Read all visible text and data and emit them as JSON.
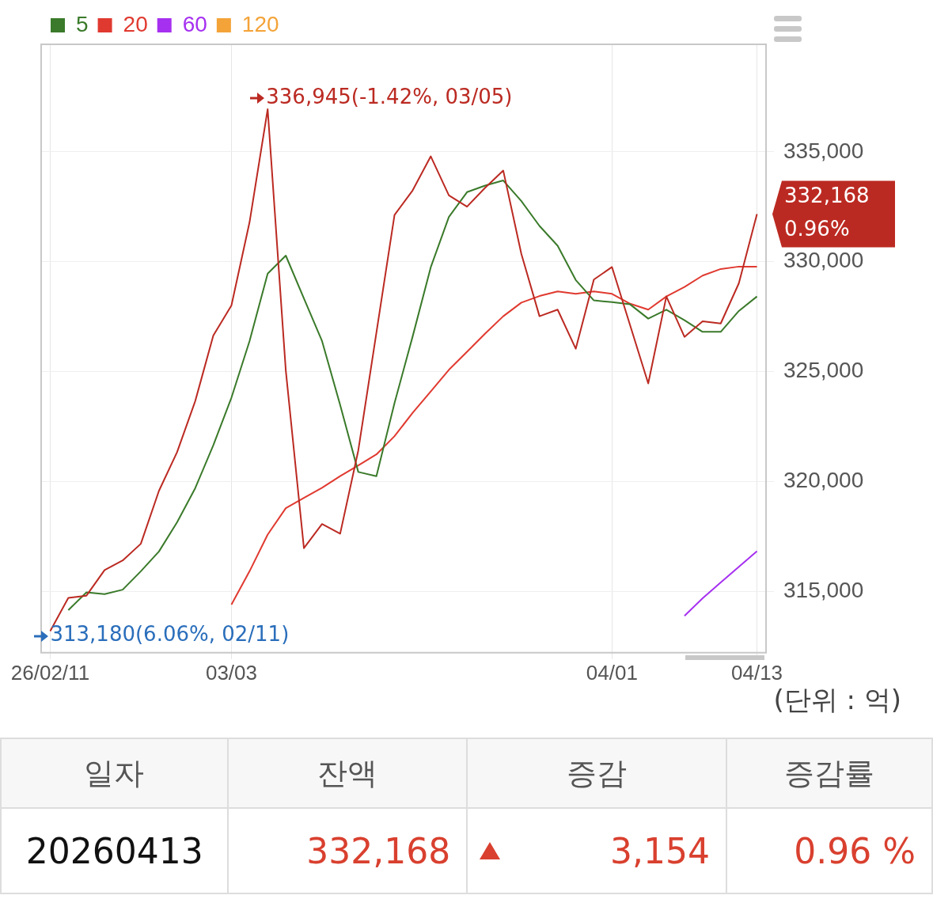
{
  "chart_data": {
    "type": "line",
    "categories": [
      "26/02/11",
      null,
      null,
      null,
      null,
      null,
      null,
      null,
      null,
      null,
      "03/03",
      null,
      null,
      null,
      null,
      null,
      null,
      null,
      null,
      null,
      null,
      null,
      null,
      null,
      null,
      null,
      null,
      null,
      null,
      null,
      null,
      "04/01",
      null,
      null,
      null,
      null,
      null,
      null,
      null,
      "04/13"
    ],
    "series": [
      {
        "color": "#bb2a22",
        "values": [
          313180,
          314700,
          314800,
          315960,
          316400,
          317160,
          319570,
          321330,
          323650,
          326640,
          328010,
          331800,
          336945,
          325050,
          316960,
          318060,
          317620,
          321410,
          326770,
          332130,
          333250,
          334800,
          333020,
          332510,
          333370,
          334150,
          330350,
          327520,
          327820,
          326040,
          329190,
          329760,
          327110,
          324460,
          328420,
          326580,
          327290,
          327190,
          329020,
          332168
        ]
      },
      {
        "name": "5",
        "color": "#3a7a2a",
        "values": [
          null,
          314140,
          314950,
          314870,
          315070,
          315910,
          316810,
          318140,
          319690,
          321650,
          323810,
          326390,
          329460,
          330280,
          328330,
          326390,
          323480,
          320430,
          320240,
          323570,
          326600,
          329750,
          332040,
          333170,
          333470,
          333700,
          332760,
          331630,
          330730,
          329170,
          328240,
          328160,
          328060,
          327410,
          327820,
          327340,
          326810,
          326810,
          327760,
          328420
        ]
      },
      {
        "name": "20",
        "color": "#e03a30",
        "values": [
          null,
          null,
          null,
          null,
          null,
          null,
          null,
          null,
          null,
          null,
          314390,
          315910,
          317580,
          318780,
          319250,
          319710,
          320240,
          320730,
          321230,
          322060,
          323120,
          324100,
          325080,
          325900,
          326730,
          327520,
          328140,
          328440,
          328650,
          328540,
          328650,
          328540,
          328090,
          327820,
          328420,
          328850,
          329370,
          329670,
          329780,
          329780
        ]
      },
      {
        "name": "60",
        "color": "#a630f0",
        "values": [
          null,
          null,
          null,
          null,
          null,
          null,
          null,
          null,
          null,
          null,
          null,
          null,
          null,
          null,
          null,
          null,
          null,
          null,
          null,
          null,
          null,
          null,
          null,
          null,
          null,
          null,
          null,
          null,
          null,
          null,
          null,
          null,
          null,
          null,
          null,
          313880,
          314680,
          315400,
          316110,
          316820
        ]
      },
      {
        "name": "120",
        "color": "#f4a338",
        "values": [
          null,
          null,
          null,
          null,
          null,
          null,
          null,
          null,
          null,
          null,
          null,
          null,
          null,
          null,
          null,
          null,
          null,
          null,
          null,
          null,
          null,
          null,
          null,
          null,
          null,
          null,
          null,
          null,
          null,
          null,
          null,
          null,
          null,
          null,
          null,
          null,
          null,
          null,
          null,
          null
        ]
      }
    ],
    "ylim": [
      312200,
      339900
    ],
    "yticks": [
      {
        "value": 315000,
        "label": "315,000"
      },
      {
        "value": 320000,
        "label": "320,000"
      },
      {
        "value": 325000,
        "label": "325,000"
      },
      {
        "value": 330000,
        "label": "330,000"
      },
      {
        "value": 335000,
        "label": "335,000"
      }
    ],
    "grid": true,
    "legend": "top left",
    "marker": "none",
    "line_style": "solid",
    "annotations": [
      "336,945(-1.42%, 03/05)",
      "313,180(6.06%, 02/11)",
      "332,168\n0.96%",
      "(단위 : 억)",
      "일자",
      "잔액",
      "증감",
      "증감률",
      "20260413",
      "332,168",
      "3,154",
      "0.96 %"
    ]
  }
}
